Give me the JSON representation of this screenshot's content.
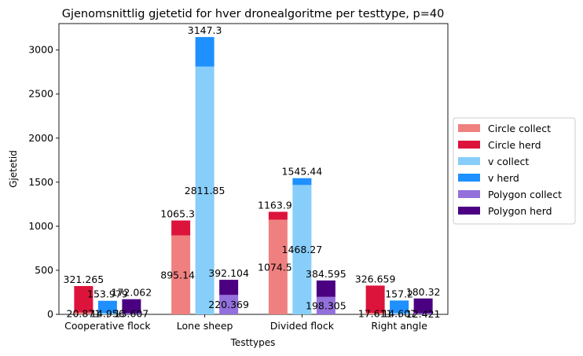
{
  "chart_data": {
    "type": "bar",
    "title": "Gjenomsnittlig gjetetid for hver dronealgoritme per testtype, p=40",
    "xlabel": "Testtypes",
    "ylabel": "Gjetetid",
    "ylim": [
      0,
      3300
    ],
    "yticks": [
      0,
      500,
      1000,
      1500,
      2000,
      2500,
      3000
    ],
    "categories": [
      "Cooperative flock",
      "Lone sheep",
      "Divided flock",
      "Right angle"
    ],
    "legend_position": "center right, outside plot",
    "grid": false,
    "stacked_pairs": [
      {
        "name": "Circle",
        "collect": {
          "name": "Circle collect",
          "color": "#f08080",
          "values": [
            20.871,
            895.144,
            1074.53,
            17.611
          ],
          "labels": [
            "20.871",
            "895.144",
            "1074.53",
            "17.611"
          ]
        },
        "herd": {
          "name": "Circle herd",
          "color": "#dc143c",
          "totals": [
            321.265,
            1065.38,
            1163.92,
            326.659
          ],
          "labels": [
            "321.265",
            "1065.38",
            "1163.92",
            "326.659"
          ]
        }
      },
      {
        "name": "v",
        "collect": {
          "name": "v collect",
          "color": "#87cefa",
          "values": [
            14.956,
            2811.85,
            1468.27,
            14.607
          ],
          "labels": [
            "14.956",
            "2811.85",
            "1468.27",
            "14.607"
          ]
        },
        "herd": {
          "name": "v herd",
          "color": "#1e90ff",
          "totals": [
            153.979,
            3147.3,
            1545.44,
            157.2
          ],
          "labels": [
            "153.979",
            "3147.3",
            "1545.44",
            "157.2"
          ]
        }
      },
      {
        "name": "Polygon",
        "collect": {
          "name": "Polygon collect",
          "color": "#9370db",
          "values": [
            13.607,
            220.369,
            198.305,
            12.421
          ],
          "labels": [
            "13.607",
            "220.369",
            "198.305",
            "12.421"
          ]
        },
        "herd": {
          "name": "Polygon herd",
          "color": "#4b0082",
          "totals": [
            172.062,
            392.104,
            384.595,
            180.32
          ],
          "labels": [
            "172.062",
            "392.104",
            "384.595",
            "180.32"
          ]
        }
      }
    ]
  }
}
